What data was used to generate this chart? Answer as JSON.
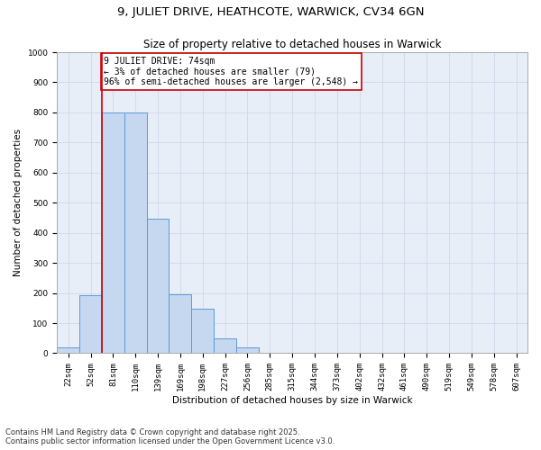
{
  "title_line1": "9, JULIET DRIVE, HEATHCOTE, WARWICK, CV34 6GN",
  "title_line2": "Size of property relative to detached houses in Warwick",
  "xlabel": "Distribution of detached houses by size in Warwick",
  "ylabel": "Number of detached properties",
  "categories": [
    "22sqm",
    "52sqm",
    "81sqm",
    "110sqm",
    "139sqm",
    "169sqm",
    "198sqm",
    "227sqm",
    "256sqm",
    "285sqm",
    "315sqm",
    "344sqm",
    "373sqm",
    "402sqm",
    "432sqm",
    "461sqm",
    "490sqm",
    "519sqm",
    "549sqm",
    "578sqm",
    "607sqm"
  ],
  "values": [
    20,
    193,
    800,
    800,
    447,
    197,
    147,
    50,
    20,
    0,
    0,
    0,
    0,
    0,
    0,
    0,
    0,
    0,
    0,
    0,
    0
  ],
  "bar_color": "#c5d8f0",
  "bar_edge_color": "#5b9bd5",
  "vline_color": "#cc0000",
  "vline_x": 1.5,
  "annotation_text": "9 JULIET DRIVE: 74sqm\n← 3% of detached houses are smaller (79)\n96% of semi-detached houses are larger (2,548) →",
  "annotation_box_color": "#cc0000",
  "ylim": [
    0,
    1000
  ],
  "yticks": [
    0,
    100,
    200,
    300,
    400,
    500,
    600,
    700,
    800,
    900,
    1000
  ],
  "grid_color": "#d0d8e8",
  "bg_color": "#e8eef8",
  "footer_line1": "Contains HM Land Registry data © Crown copyright and database right 2025.",
  "footer_line2": "Contains public sector information licensed under the Open Government Licence v3.0.",
  "title_fontsize": 9.5,
  "subtitle_fontsize": 8.5,
  "axis_label_fontsize": 7.5,
  "tick_fontsize": 6.5,
  "annotation_fontsize": 7,
  "footer_fontsize": 6
}
